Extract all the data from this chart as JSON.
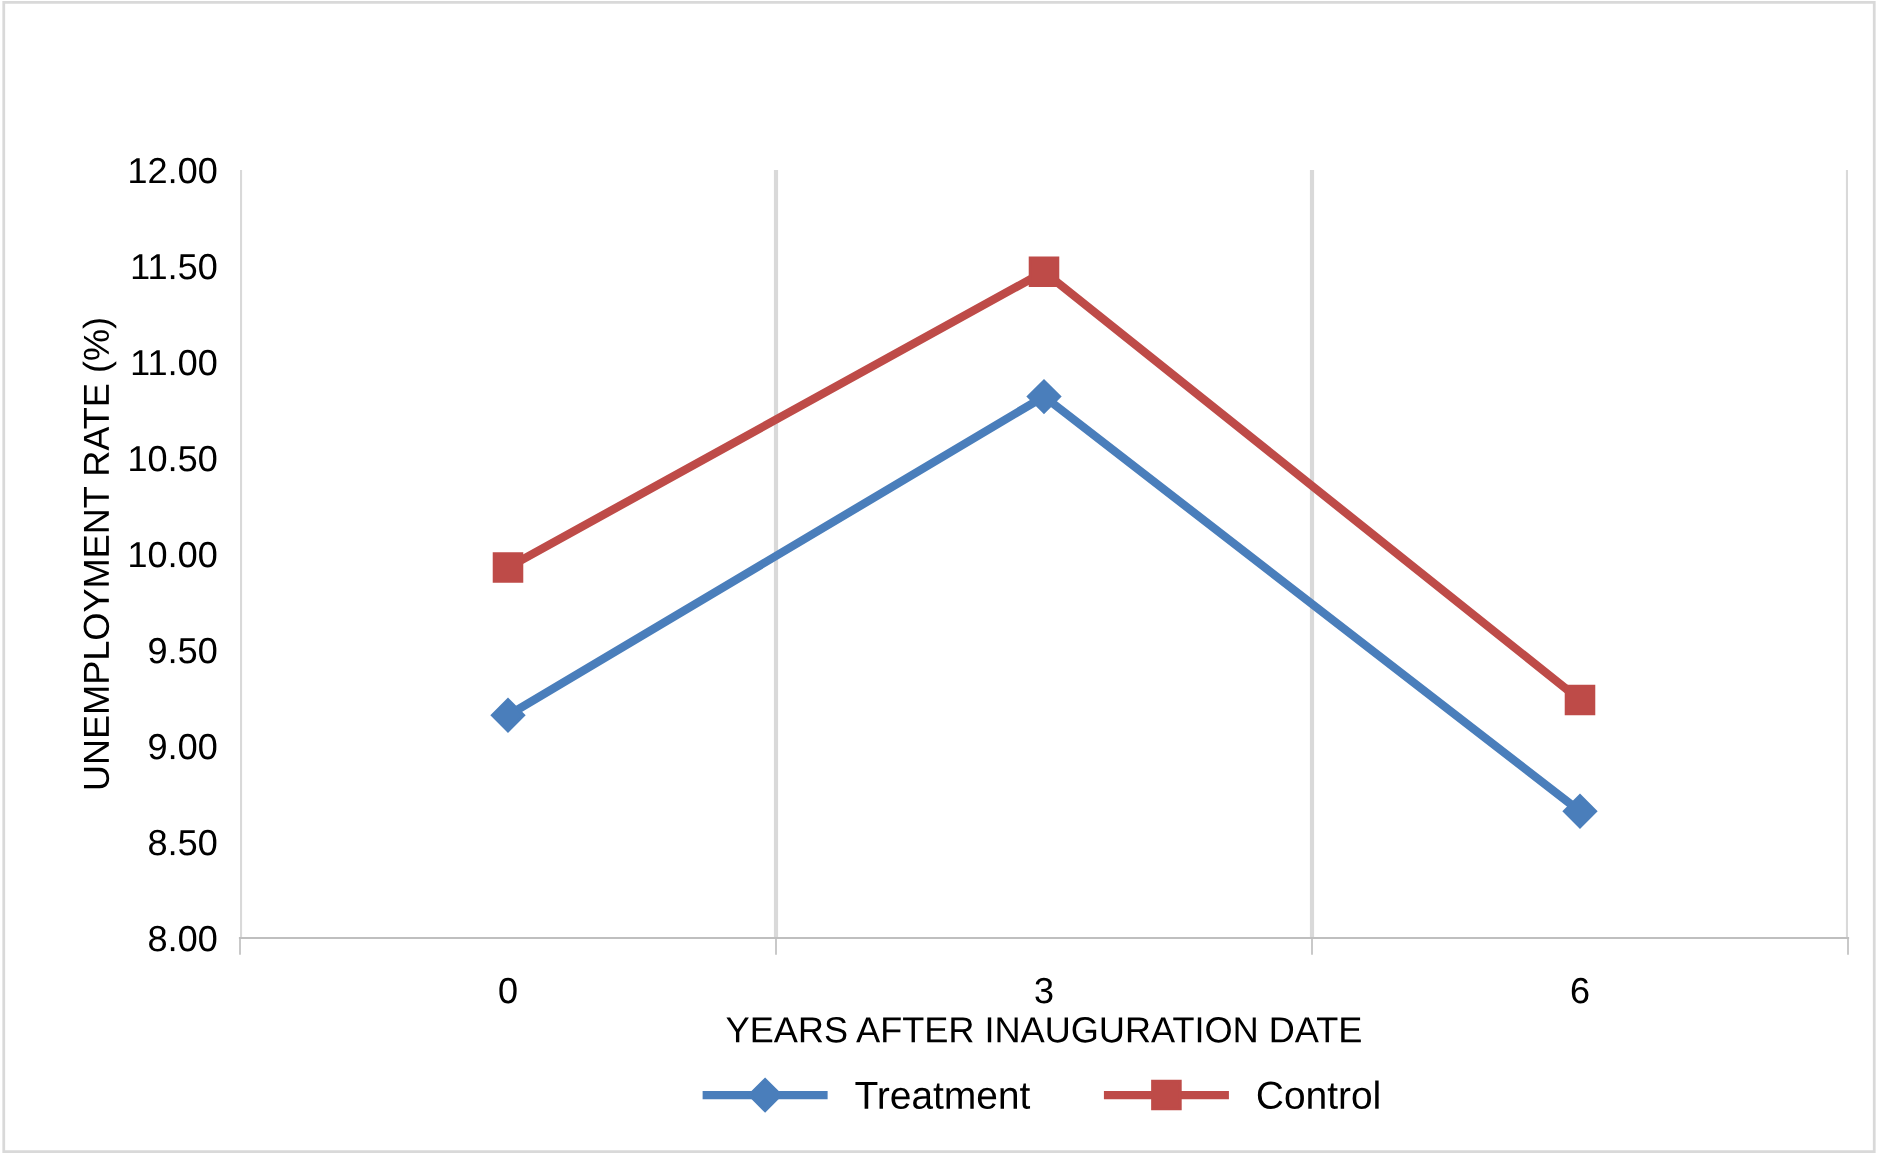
{
  "chart_data": {
    "type": "line",
    "xlabel": "YEARS AFTER INAUGURATION DATE",
    "ylabel": "UNEMPLOYMENT RATE (%)",
    "categories": [
      "0",
      "3",
      "6"
    ],
    "series": [
      {
        "name": "Treatment",
        "color": "#4a7ebb",
        "marker": "diamond",
        "values": [
          9.16,
          10.82,
          8.66
        ]
      },
      {
        "name": "Control",
        "color": "#be4b48",
        "marker": "square",
        "values": [
          9.93,
          11.47,
          9.24
        ]
      }
    ],
    "ylim": [
      8.0,
      12.0
    ],
    "yticks": [
      {
        "value": 8,
        "label": "8.00"
      },
      {
        "value": 8.5,
        "label": "8.50"
      },
      {
        "value": 9,
        "label": "9.00"
      },
      {
        "value": 9.5,
        "label": "9.50"
      },
      {
        "value": 10,
        "label": "10.00"
      },
      {
        "value": 10.5,
        "label": "10.50"
      },
      {
        "value": 11,
        "label": "11.00"
      },
      {
        "value": 11.5,
        "label": "11.50"
      },
      {
        "value": 12,
        "label": "12.00"
      }
    ],
    "grid": "x",
    "legend": "bottom",
    "line_style": "solid"
  }
}
